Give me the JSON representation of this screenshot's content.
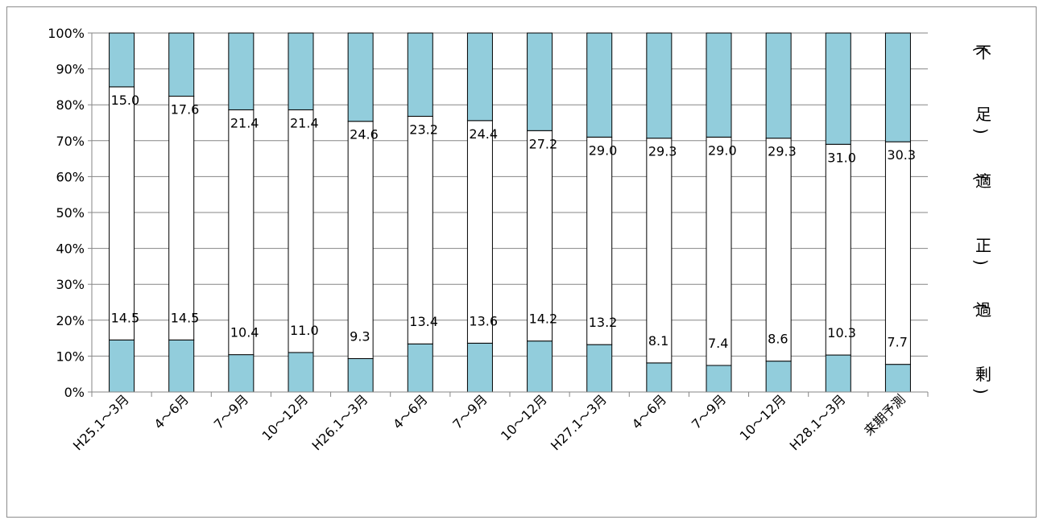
{
  "chart_data": {
    "type": "bar",
    "stacked": true,
    "normalized": true,
    "categories": [
      "H25.1～3月",
      "4～6月",
      "7～9月",
      "10～12月",
      "H26.1～3月",
      "4～6月",
      "7～9月",
      "10～12月",
      "H27.1～3月",
      "4～6月",
      "7～9月",
      "10～12月",
      "H28.1～3月",
      "来期予測"
    ],
    "series": [
      {
        "values": [
          14.5,
          14.5,
          10.4,
          11.0,
          9.3,
          13.4,
          13.6,
          14.2,
          13.2,
          8.1,
          7.4,
          8.6,
          10.3,
          7.7
        ]
      },
      {
        "values": [
          70.5,
          67.9,
          68.2,
          67.6,
          66.1,
          63.4,
          62.0,
          58.6,
          57.8,
          62.6,
          63.6,
          62.1,
          58.7,
          62.0
        ]
      },
      {
        "values": [
          15.0,
          17.6,
          21.4,
          21.4,
          24.6,
          23.2,
          24.4,
          27.2,
          29.0,
          29.3,
          29.0,
          29.3,
          31.0,
          30.3
        ]
      }
    ],
    "bottom_labels": [
      "14.5",
      "14.5",
      "10.4",
      "11.0",
      "9.3",
      "13.4",
      "13.6",
      "14.2",
      "13.2",
      "8.1",
      "7.4",
      "8.6",
      "10.3",
      "7.7"
    ],
    "top_labels": [
      "15.0",
      "17.6",
      "21.4",
      "21.4",
      "24.6",
      "23.2",
      "24.4",
      "27.2",
      "29.0",
      "29.3",
      "29.0",
      "29.3",
      "31.0",
      "30.3"
    ],
    "ytick_labels": [
      "0%",
      "10%",
      "20%",
      "30%",
      "40%",
      "50%",
      "60%",
      "70%",
      "80%",
      "90%",
      "100%"
    ],
    "ylim": [
      0,
      100
    ],
    "grid": true,
    "legend": {
      "position": "right",
      "entries": [
        "（不　足）",
        "（適　正）",
        "（過　剰）"
      ]
    },
    "colors": {
      "filled": "#92cddc",
      "plain": "#ffffff",
      "outline": "#000000",
      "grid": "#868686"
    }
  }
}
